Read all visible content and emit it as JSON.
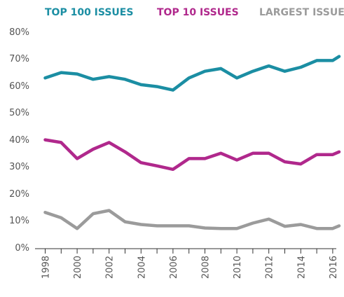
{
  "chart_data": {
    "type": "line",
    "title": "",
    "xlabel": "",
    "ylabel": "",
    "x": [
      1998,
      1999,
      2000,
      2001,
      2002,
      2003,
      2004,
      2005,
      2006,
      2007,
      2008,
      2009,
      2010,
      2011,
      2012,
      2013,
      2014,
      2015,
      2016,
      2016.4
    ],
    "x_ticks": [
      "1998",
      "2000",
      "2002",
      "2004",
      "2006",
      "2008",
      "2010",
      "2012",
      "2014",
      "2016"
    ],
    "y_ticks": [
      "0%",
      "10%",
      "20%",
      "30%",
      "40%",
      "50%",
      "60%",
      "70%",
      "80%"
    ],
    "ylim": [
      0,
      80
    ],
    "xlim": [
      1998,
      2016.5
    ],
    "grid": false,
    "legend_position": "top",
    "series": [
      {
        "name": "TOP 100 ISSUES",
        "color": "#1b8ea3",
        "values": [
          63.5,
          65.5,
          65,
          63,
          64,
          63,
          61,
          60.3,
          59,
          63.5,
          66,
          67,
          63.5,
          66,
          68,
          66,
          67.5,
          70,
          70,
          71.5
        ]
      },
      {
        "name": "TOP 10 ISSUES",
        "color": "#b0288c",
        "values": [
          40.5,
          39.5,
          33.5,
          37,
          39.5,
          36,
          32,
          30.8,
          29.5,
          33.5,
          33.5,
          35.5,
          33,
          35.5,
          35.5,
          32.3,
          31.5,
          35,
          35,
          36
        ]
      },
      {
        "name": "LARGEST ISSUE",
        "color": "#9b9b9b",
        "values": [
          13.5,
          11.5,
          7.5,
          13,
          14.2,
          10,
          9,
          8.5,
          8.5,
          8.5,
          7.7,
          7.5,
          7.5,
          9.5,
          11,
          8.3,
          9,
          7.5,
          7.5,
          8.5
        ]
      }
    ]
  }
}
